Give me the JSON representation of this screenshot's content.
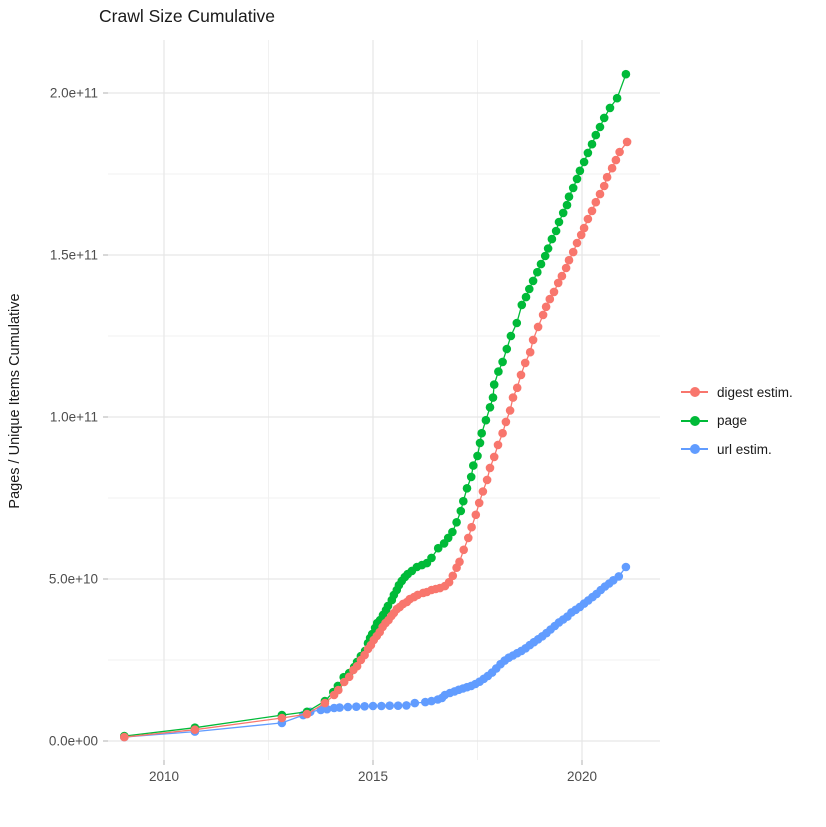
{
  "title": "Crawl Size Cumulative",
  "y_axis_label": "Pages / Unique Items Cumulative",
  "legend": {
    "items": [
      {
        "label": "digest estim.",
        "color": "#F8766D"
      },
      {
        "label": "page",
        "color": "#00BA38"
      },
      {
        "label": "url estim.",
        "color": "#619CFF"
      }
    ]
  },
  "colors": {
    "grid_major": "#E7E7E7",
    "grid_minor": "#F1F1F1",
    "tick": "#BDBDBD",
    "axis_text": "#4D4D4D",
    "title_text": "#1A1A1A",
    "background": "#FFFFFF"
  },
  "chart_data": {
    "type": "scatter",
    "title": "Crawl Size Cumulative",
    "xlabel": "",
    "ylabel": "Pages / Unique Items Cumulative",
    "x_unit": "year",
    "y_values_unit": "1e9 pages / unique items (billions, cumulative)",
    "xlim": [
      2008.5,
      2021.9
    ],
    "ylim": [
      -5,
      218
    ],
    "grid": "major+minor",
    "legend_position": "right",
    "x_major_ticks": {
      "values": [
        2010,
        2015,
        2020
      ],
      "labels": [
        "2010",
        "2015",
        "2020"
      ]
    },
    "y_major_ticks": {
      "values": [
        0,
        50,
        100,
        150,
        200
      ],
      "labels": [
        "0.0e+00",
        "5.0e+10",
        "1.0e+11",
        "1.5e+11",
        "2.0e+11"
      ]
    },
    "x_minor_gridlines": [
      2012.5,
      2017.5
    ],
    "y_minor_gridlines": [
      25,
      75,
      125,
      175
    ],
    "series": [
      {
        "name": "url estim.",
        "color": "#619CFF",
        "x": [
          2009.05,
          2010.74,
          2012.82,
          2013.33,
          2013.5,
          2013.75,
          2013.9,
          2014.07,
          2014.2,
          2014.4,
          2014.6,
          2014.8,
          2015.0,
          2015.2,
          2015.4,
          2015.6,
          2015.8,
          2016.0,
          2016.25,
          2016.4,
          2016.55,
          2016.65,
          2016.72,
          2016.84,
          2016.95,
          2017.05,
          2017.15,
          2017.25,
          2017.35,
          2017.45,
          2017.55,
          2017.65,
          2017.75,
          2017.85,
          2017.95,
          2018.05,
          2018.15,
          2018.25,
          2018.35,
          2018.45,
          2018.55,
          2018.65,
          2018.75,
          2018.85,
          2018.95,
          2019.05,
          2019.15,
          2019.25,
          2019.35,
          2019.45,
          2019.55,
          2019.65,
          2019.75,
          2019.85,
          2019.95,
          2020.05,
          2020.15,
          2020.25,
          2020.35,
          2020.45,
          2020.55,
          2020.65,
          2020.75,
          2020.88,
          2021.05
        ],
        "y": [
          1.2,
          2.9,
          5.6,
          8.0,
          9.0,
          9.6,
          9.8,
          10.2,
          10.3,
          10.5,
          10.6,
          10.7,
          10.8,
          10.8,
          10.9,
          10.9,
          11.0,
          11.7,
          12.0,
          12.3,
          12.8,
          13.3,
          14.2,
          14.8,
          15.3,
          15.8,
          16.2,
          16.6,
          17.0,
          17.6,
          18.3,
          19.2,
          20.1,
          21.1,
          22.4,
          23.7,
          24.8,
          25.7,
          26.4,
          27.1,
          27.8,
          28.6,
          29.6,
          30.5,
          31.4,
          32.3,
          33.3,
          34.4,
          35.5,
          36.6,
          37.5,
          38.4,
          39.7,
          40.5,
          41.4,
          42.4,
          43.4,
          44.4,
          45.4,
          46.6,
          47.7,
          48.6,
          49.6,
          50.8,
          53.7
        ]
      },
      {
        "name": "page",
        "color": "#00BA38",
        "x": [
          2009.05,
          2010.74,
          2012.82,
          2013.42,
          2013.85,
          2014.05,
          2014.16,
          2014.3,
          2014.43,
          2014.55,
          2014.62,
          2014.71,
          2014.81,
          2014.88,
          2014.93,
          2014.98,
          2015.05,
          2015.1,
          2015.17,
          2015.24,
          2015.31,
          2015.36,
          2015.45,
          2015.5,
          2015.57,
          2015.62,
          2015.69,
          2015.76,
          2015.83,
          2015.93,
          2016.05,
          2016.17,
          2016.29,
          2016.4,
          2016.56,
          2016.7,
          2016.8,
          2016.9,
          2017.0,
          2017.1,
          2017.16,
          2017.25,
          2017.35,
          2017.4,
          2017.5,
          2017.56,
          2017.6,
          2017.7,
          2017.8,
          2017.87,
          2017.9,
          2018.0,
          2018.1,
          2018.2,
          2018.3,
          2018.44,
          2018.56,
          2018.66,
          2018.74,
          2018.83,
          2018.93,
          2019.02,
          2019.12,
          2019.19,
          2019.28,
          2019.38,
          2019.45,
          2019.55,
          2019.64,
          2019.69,
          2019.79,
          2019.88,
          2019.95,
          2020.05,
          2020.14,
          2020.24,
          2020.33,
          2020.43,
          2020.53,
          2020.67,
          2020.84,
          2021.05
        ],
        "y": [
          1.5,
          4.1,
          8.0,
          9.0,
          12.3,
          15.1,
          17.0,
          19.7,
          21.0,
          22.8,
          24.4,
          26.2,
          27.8,
          30.2,
          31.8,
          33.0,
          34.9,
          36.4,
          37.3,
          38.9,
          40.4,
          41.7,
          43.5,
          45.1,
          46.6,
          48.1,
          49.4,
          50.6,
          51.5,
          52.5,
          53.7,
          54.3,
          54.9,
          56.5,
          59.5,
          61.0,
          62.7,
          64.5,
          67.5,
          71.0,
          74.0,
          78.0,
          81.5,
          85.0,
          88.0,
          92.0,
          95.0,
          99.0,
          103.0,
          106.0,
          110.0,
          114.0,
          117.0,
          121.0,
          125.0,
          129.0,
          134.6,
          137.0,
          139.5,
          142.0,
          144.7,
          147.2,
          149.7,
          152.0,
          154.9,
          157.4,
          160.2,
          163.0,
          165.4,
          168.0,
          170.7,
          173.5,
          176.0,
          178.7,
          181.5,
          184.2,
          187.0,
          189.5,
          192.3,
          195.4,
          198.4,
          205.8
        ]
      },
      {
        "name": "digest estim.",
        "color": "#F8766D",
        "x": [
          2009.05,
          2010.74,
          2012.82,
          2013.42,
          2013.85,
          2014.07,
          2014.17,
          2014.31,
          2014.43,
          2014.53,
          2014.62,
          2014.71,
          2014.8,
          2014.88,
          2014.95,
          2015.02,
          2015.09,
          2015.16,
          2015.23,
          2015.3,
          2015.37,
          2015.44,
          2015.5,
          2015.57,
          2015.64,
          2015.72,
          2015.81,
          2015.88,
          2015.98,
          2016.07,
          2016.2,
          2016.29,
          2016.4,
          2016.5,
          2016.6,
          2016.72,
          2016.82,
          2016.91,
          2017.0,
          2017.07,
          2017.17,
          2017.28,
          2017.36,
          2017.46,
          2017.54,
          2017.63,
          2017.73,
          2017.8,
          2017.9,
          2017.99,
          2018.1,
          2018.18,
          2018.28,
          2018.35,
          2018.45,
          2018.54,
          2018.64,
          2018.76,
          2018.83,
          2018.95,
          2019.07,
          2019.14,
          2019.23,
          2019.33,
          2019.43,
          2019.52,
          2019.62,
          2019.69,
          2019.79,
          2019.88,
          2019.98,
          2020.05,
          2020.14,
          2020.24,
          2020.33,
          2020.43,
          2020.53,
          2020.6,
          2020.72,
          2020.81,
          2020.9,
          2021.08
        ],
        "y": [
          1.2,
          3.5,
          7.1,
          8.3,
          11.7,
          14.2,
          15.7,
          18.2,
          19.8,
          21.9,
          23.1,
          25.0,
          26.5,
          28.4,
          29.6,
          31.2,
          32.4,
          33.6,
          35.2,
          36.4,
          37.3,
          38.6,
          39.5,
          40.7,
          41.4,
          42.3,
          42.9,
          43.8,
          44.4,
          45.1,
          45.7,
          46.0,
          46.6,
          46.9,
          47.2,
          47.8,
          49.0,
          51.0,
          53.5,
          55.3,
          59.0,
          62.7,
          66.0,
          69.8,
          73.5,
          77.0,
          80.6,
          84.3,
          87.7,
          91.4,
          95.0,
          98.5,
          102.0,
          106.0,
          109.0,
          113.0,
          116.7,
          120.0,
          123.8,
          127.8,
          131.5,
          134.0,
          136.4,
          138.6,
          141.4,
          143.5,
          146.0,
          148.4,
          150.9,
          153.7,
          156.2,
          158.3,
          161.1,
          163.6,
          166.3,
          168.8,
          171.3,
          174.0,
          176.8,
          179.3,
          181.8,
          184.9
        ]
      }
    ]
  }
}
